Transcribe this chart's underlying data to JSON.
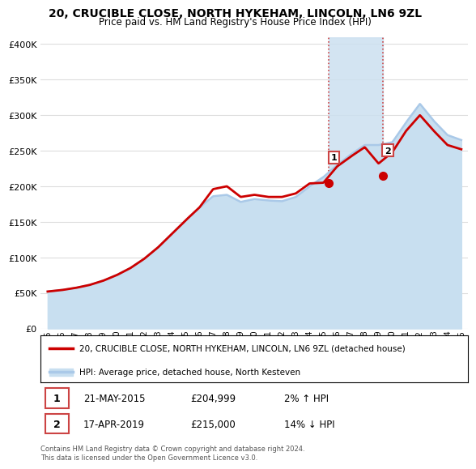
{
  "title": "20, CRUCIBLE CLOSE, NORTH HYKEHAM, LINCOLN, LN6 9ZL",
  "subtitle": "Price paid vs. HM Land Registry's House Price Index (HPI)",
  "legend_line1": "20, CRUCIBLE CLOSE, NORTH HYKEHAM, LINCOLN, LN6 9ZL (detached house)",
  "legend_line2": "HPI: Average price, detached house, North Kesteven",
  "annotation1_label": "1",
  "annotation1_date": "21-MAY-2015",
  "annotation1_price": "£204,999",
  "annotation1_hpi": "2% ↑ HPI",
  "annotation1_year": 2015.38,
  "annotation1_value": 204999,
  "annotation2_label": "2",
  "annotation2_date": "17-APR-2019",
  "annotation2_price": "£215,000",
  "annotation2_hpi": "14% ↓ HPI",
  "annotation2_year": 2019.29,
  "annotation2_value": 215000,
  "hpi_color": "#aac9e8",
  "hpi_fill_color": "#c8dff0",
  "price_color": "#cc0000",
  "shaded_color": "#cce0f0",
  "background_color": "#ffffff",
  "grid_color": "#dddddd",
  "dashed_color": "#cc4444",
  "ylim": [
    0,
    410000
  ],
  "yticks": [
    0,
    50000,
    100000,
    150000,
    200000,
    250000,
    300000,
    350000,
    400000
  ],
  "ytick_labels": [
    "£0",
    "£50K",
    "£100K",
    "£150K",
    "£200K",
    "£250K",
    "£300K",
    "£350K",
    "£400K"
  ],
  "xlim_left": 1994.5,
  "xlim_right": 2025.5,
  "years": [
    1995,
    1996,
    1997,
    1998,
    1999,
    2000,
    2001,
    2002,
    2003,
    2004,
    2005,
    2006,
    2007,
    2008,
    2009,
    2010,
    2011,
    2012,
    2013,
    2014,
    2015,
    2016,
    2017,
    2018,
    2019,
    2020,
    2021,
    2022,
    2023,
    2024,
    2025
  ],
  "hpi_values": [
    52000,
    54000,
    57000,
    61000,
    67000,
    75000,
    85000,
    98000,
    114000,
    133000,
    152000,
    170000,
    186000,
    188000,
    178000,
    182000,
    180000,
    179000,
    185000,
    200000,
    213000,
    230000,
    245000,
    258000,
    258000,
    262000,
    290000,
    316000,
    292000,
    272000,
    265000
  ],
  "price_values": [
    52000,
    54000,
    57000,
    61000,
    67000,
    75000,
    85000,
    98000,
    114000,
    133000,
    152000,
    170000,
    196000,
    200000,
    185000,
    188000,
    185000,
    185000,
    190000,
    204000,
    205000,
    228000,
    242000,
    255000,
    232000,
    248000,
    278000,
    300000,
    278000,
    258000,
    252000
  ],
  "footnote": "Contains HM Land Registry data © Crown copyright and database right 2024.\nThis data is licensed under the Open Government Licence v3.0."
}
